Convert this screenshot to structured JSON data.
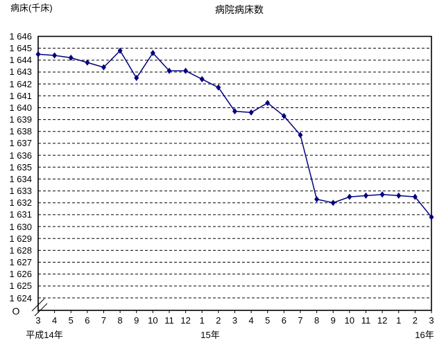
{
  "chart_data": {
    "type": "line",
    "title": "病院病床数",
    "ylabel": "病床(千床)",
    "zero_label": "O",
    "ylim": [
      1624,
      1646
    ],
    "grid": "horizontal-dashed",
    "axis_break": true,
    "legend": "none",
    "line_color": "#000080",
    "grid_color": "#000000",
    "frame_color": "#000000",
    "text_color": "#000000",
    "y_tick_labels": [
      "1 646",
      "1 645",
      "1 644",
      "1 643",
      "1 642",
      "1 641",
      "1 640",
      "1 639",
      "1 638",
      "1 637",
      "1 636",
      "1 635",
      "1 634",
      "1 633",
      "1 632",
      "1 631",
      "1 630",
      "1 629",
      "1 628",
      "1 627",
      "1 626",
      "1 625",
      "1 624"
    ],
    "x_tick_labels": [
      "3",
      "4",
      "5",
      "6",
      "7",
      "8",
      "9",
      "10",
      "11",
      "12",
      "1",
      "2",
      "3",
      "4",
      "5",
      "6",
      "7",
      "8",
      "9",
      "10",
      "11",
      "12",
      "1",
      "2",
      "3"
    ],
    "year_labels": [
      "平成14年",
      "15年",
      "16年"
    ],
    "values": [
      1644.5,
      1644.4,
      1644.2,
      1643.8,
      1643.4,
      1644.8,
      1642.5,
      1644.6,
      1643.1,
      1643.1,
      1642.4,
      1641.7,
      1639.7,
      1639.6,
      1640.4,
      1639.3,
      1637.7,
      1632.3,
      1632.0,
      1632.5,
      1632.6,
      1632.7,
      1632.6,
      1632.5,
      1630.8
    ]
  }
}
